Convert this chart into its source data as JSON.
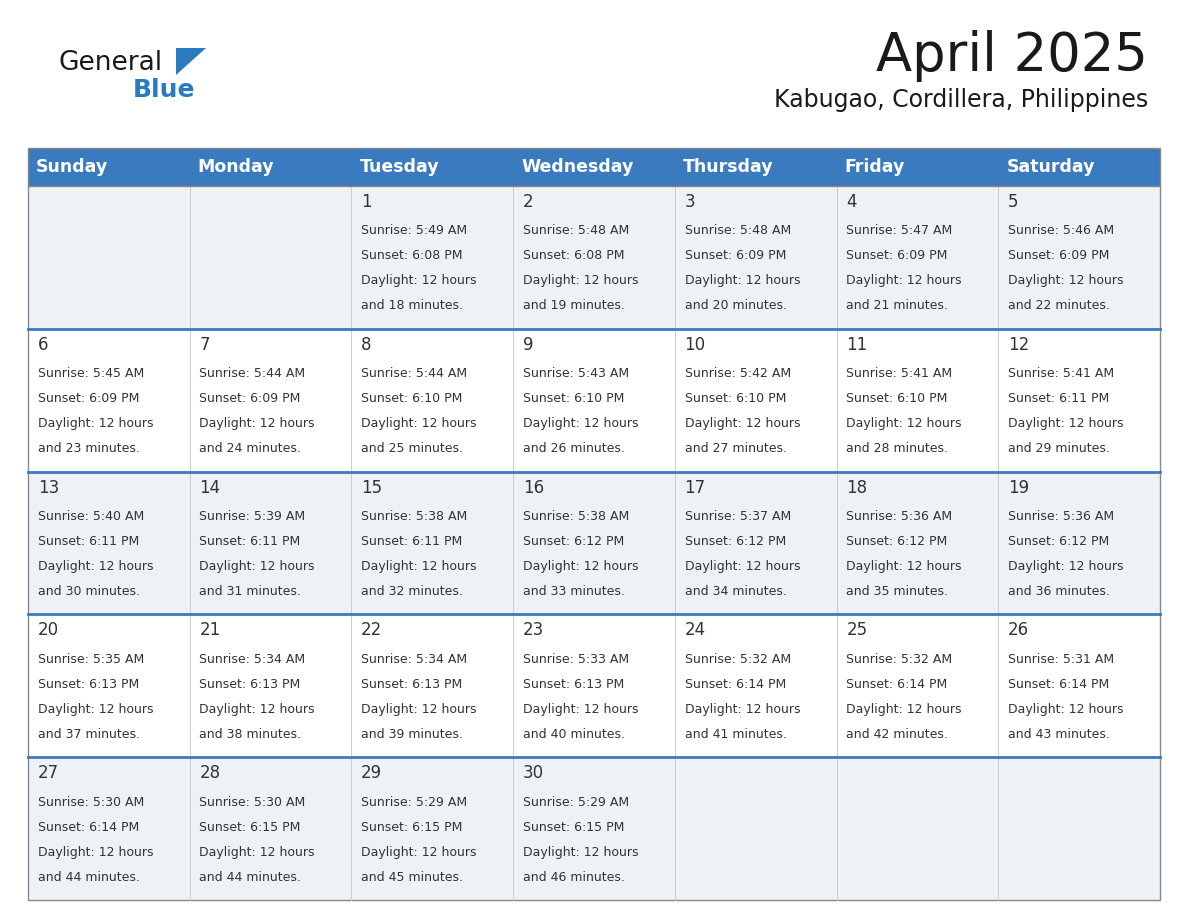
{
  "title": "April 2025",
  "subtitle": "Kabugao, Cordillera, Philippines",
  "days_of_week": [
    "Sunday",
    "Monday",
    "Tuesday",
    "Wednesday",
    "Thursday",
    "Friday",
    "Saturday"
  ],
  "header_bg_color": "#3a7abf",
  "header_text_color": "#ffffff",
  "cell_bg_color_light": "#eef2f7",
  "cell_bg_color_white": "#ffffff",
  "cell_text_color": "#333333",
  "title_color": "#1a1a1a",
  "subtitle_color": "#1a1a1a",
  "logo_general_color": "#1a1a1a",
  "logo_blue_color": "#2a7abf",
  "row_divider_color": "#3a7abf",
  "col_divider_color": "#cccccc",
  "outer_border_color": "#888888",
  "calendar_data": [
    {
      "day": 1,
      "row": 0,
      "col": 2,
      "sunrise": "5:49 AM",
      "sunset": "6:08 PM",
      "daylight_hours": 12,
      "daylight_minutes": 18
    },
    {
      "day": 2,
      "row": 0,
      "col": 3,
      "sunrise": "5:48 AM",
      "sunset": "6:08 PM",
      "daylight_hours": 12,
      "daylight_minutes": 19
    },
    {
      "day": 3,
      "row": 0,
      "col": 4,
      "sunrise": "5:48 AM",
      "sunset": "6:09 PM",
      "daylight_hours": 12,
      "daylight_minutes": 20
    },
    {
      "day": 4,
      "row": 0,
      "col": 5,
      "sunrise": "5:47 AM",
      "sunset": "6:09 PM",
      "daylight_hours": 12,
      "daylight_minutes": 21
    },
    {
      "day": 5,
      "row": 0,
      "col": 6,
      "sunrise": "5:46 AM",
      "sunset": "6:09 PM",
      "daylight_hours": 12,
      "daylight_minutes": 22
    },
    {
      "day": 6,
      "row": 1,
      "col": 0,
      "sunrise": "5:45 AM",
      "sunset": "6:09 PM",
      "daylight_hours": 12,
      "daylight_minutes": 23
    },
    {
      "day": 7,
      "row": 1,
      "col": 1,
      "sunrise": "5:44 AM",
      "sunset": "6:09 PM",
      "daylight_hours": 12,
      "daylight_minutes": 24
    },
    {
      "day": 8,
      "row": 1,
      "col": 2,
      "sunrise": "5:44 AM",
      "sunset": "6:10 PM",
      "daylight_hours": 12,
      "daylight_minutes": 25
    },
    {
      "day": 9,
      "row": 1,
      "col": 3,
      "sunrise": "5:43 AM",
      "sunset": "6:10 PM",
      "daylight_hours": 12,
      "daylight_minutes": 26
    },
    {
      "day": 10,
      "row": 1,
      "col": 4,
      "sunrise": "5:42 AM",
      "sunset": "6:10 PM",
      "daylight_hours": 12,
      "daylight_minutes": 27
    },
    {
      "day": 11,
      "row": 1,
      "col": 5,
      "sunrise": "5:41 AM",
      "sunset": "6:10 PM",
      "daylight_hours": 12,
      "daylight_minutes": 28
    },
    {
      "day": 12,
      "row": 1,
      "col": 6,
      "sunrise": "5:41 AM",
      "sunset": "6:11 PM",
      "daylight_hours": 12,
      "daylight_minutes": 29
    },
    {
      "day": 13,
      "row": 2,
      "col": 0,
      "sunrise": "5:40 AM",
      "sunset": "6:11 PM",
      "daylight_hours": 12,
      "daylight_minutes": 30
    },
    {
      "day": 14,
      "row": 2,
      "col": 1,
      "sunrise": "5:39 AM",
      "sunset": "6:11 PM",
      "daylight_hours": 12,
      "daylight_minutes": 31
    },
    {
      "day": 15,
      "row": 2,
      "col": 2,
      "sunrise": "5:38 AM",
      "sunset": "6:11 PM",
      "daylight_hours": 12,
      "daylight_minutes": 32
    },
    {
      "day": 16,
      "row": 2,
      "col": 3,
      "sunrise": "5:38 AM",
      "sunset": "6:12 PM",
      "daylight_hours": 12,
      "daylight_minutes": 33
    },
    {
      "day": 17,
      "row": 2,
      "col": 4,
      "sunrise": "5:37 AM",
      "sunset": "6:12 PM",
      "daylight_hours": 12,
      "daylight_minutes": 34
    },
    {
      "day": 18,
      "row": 2,
      "col": 5,
      "sunrise": "5:36 AM",
      "sunset": "6:12 PM",
      "daylight_hours": 12,
      "daylight_minutes": 35
    },
    {
      "day": 19,
      "row": 2,
      "col": 6,
      "sunrise": "5:36 AM",
      "sunset": "6:12 PM",
      "daylight_hours": 12,
      "daylight_minutes": 36
    },
    {
      "day": 20,
      "row": 3,
      "col": 0,
      "sunrise": "5:35 AM",
      "sunset": "6:13 PM",
      "daylight_hours": 12,
      "daylight_minutes": 37
    },
    {
      "day": 21,
      "row": 3,
      "col": 1,
      "sunrise": "5:34 AM",
      "sunset": "6:13 PM",
      "daylight_hours": 12,
      "daylight_minutes": 38
    },
    {
      "day": 22,
      "row": 3,
      "col": 2,
      "sunrise": "5:34 AM",
      "sunset": "6:13 PM",
      "daylight_hours": 12,
      "daylight_minutes": 39
    },
    {
      "day": 23,
      "row": 3,
      "col": 3,
      "sunrise": "5:33 AM",
      "sunset": "6:13 PM",
      "daylight_hours": 12,
      "daylight_minutes": 40
    },
    {
      "day": 24,
      "row": 3,
      "col": 4,
      "sunrise": "5:32 AM",
      "sunset": "6:14 PM",
      "daylight_hours": 12,
      "daylight_minutes": 41
    },
    {
      "day": 25,
      "row": 3,
      "col": 5,
      "sunrise": "5:32 AM",
      "sunset": "6:14 PM",
      "daylight_hours": 12,
      "daylight_minutes": 42
    },
    {
      "day": 26,
      "row": 3,
      "col": 6,
      "sunrise": "5:31 AM",
      "sunset": "6:14 PM",
      "daylight_hours": 12,
      "daylight_minutes": 43
    },
    {
      "day": 27,
      "row": 4,
      "col": 0,
      "sunrise": "5:30 AM",
      "sunset": "6:14 PM",
      "daylight_hours": 12,
      "daylight_minutes": 44
    },
    {
      "day": 28,
      "row": 4,
      "col": 1,
      "sunrise": "5:30 AM",
      "sunset": "6:15 PM",
      "daylight_hours": 12,
      "daylight_minutes": 44
    },
    {
      "day": 29,
      "row": 4,
      "col": 2,
      "sunrise": "5:29 AM",
      "sunset": "6:15 PM",
      "daylight_hours": 12,
      "daylight_minutes": 45
    },
    {
      "day": 30,
      "row": 4,
      "col": 3,
      "sunrise": "5:29 AM",
      "sunset": "6:15 PM",
      "daylight_hours": 12,
      "daylight_minutes": 46
    }
  ],
  "num_rows": 5,
  "num_cols": 7
}
